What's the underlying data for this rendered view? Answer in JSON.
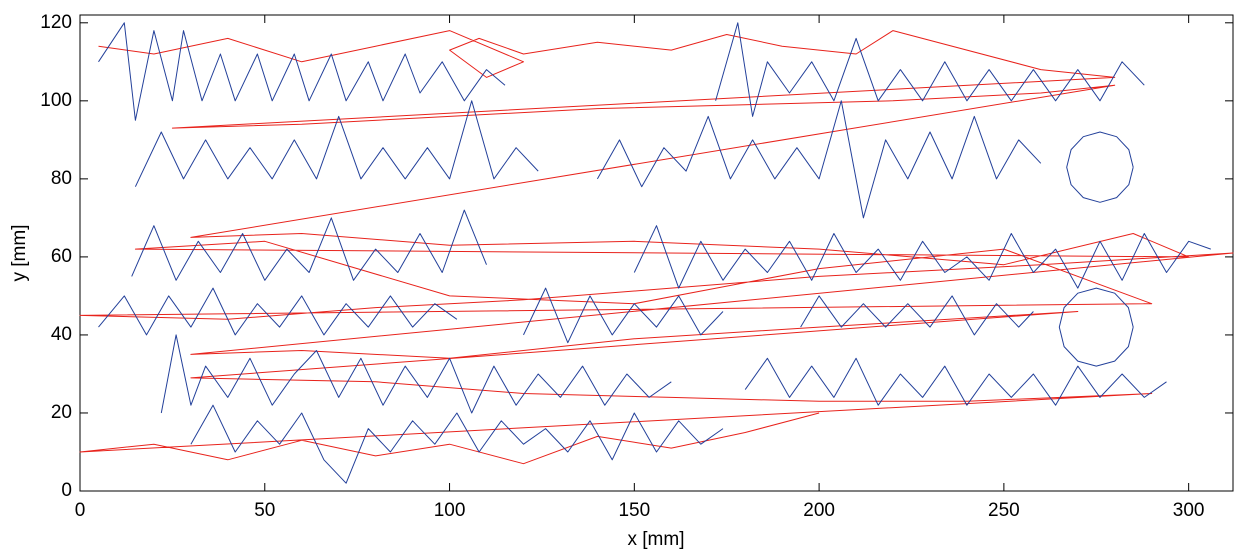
{
  "chart_data": {
    "type": "line",
    "xlabel": "x [mm]",
    "ylabel": "y [mm]",
    "xlim": [
      0,
      312
    ],
    "ylim": [
      0,
      122
    ],
    "xticks": [
      0,
      50,
      100,
      150,
      200,
      250,
      300
    ],
    "yticks": [
      0,
      20,
      40,
      60,
      80,
      100,
      120
    ],
    "series": [
      {
        "color": "#e8231c",
        "x": [
          5,
          20,
          40,
          60,
          80,
          100,
          120,
          110,
          100,
          108,
          120,
          140,
          160,
          175,
          190,
          210,
          220,
          260,
          280,
          25,
          60,
          100,
          140,
          180,
          220,
          260,
          280,
          30,
          60,
          100,
          150,
          200,
          250,
          285,
          300,
          15,
          50,
          100,
          150,
          200,
          250,
          290,
          0,
          40,
          80,
          120,
          160,
          200,
          260,
          312,
          30,
          60,
          100,
          150,
          200,
          270,
          30,
          80,
          120,
          160,
          200,
          240,
          290,
          0,
          20,
          40,
          60,
          80,
          100,
          120,
          140,
          160,
          180,
          200
        ],
        "values": [
          114,
          112,
          116,
          110,
          114,
          118,
          110,
          106,
          113,
          116,
          112,
          115,
          113,
          117,
          114,
          112,
          118,
          108,
          106,
          93,
          94,
          96,
          98,
          99,
          100,
          102,
          104,
          65,
          66,
          63,
          64,
          62,
          58,
          66,
          60,
          62,
          64,
          50,
          48,
          57,
          62,
          48,
          45,
          44,
          47,
          49,
          52,
          55,
          58,
          61,
          35,
          36,
          34,
          39,
          42,
          46,
          29,
          28,
          25,
          24,
          23,
          23,
          25,
          10,
          12,
          8,
          13,
          9,
          12,
          7,
          14,
          11,
          15,
          20
        ]
      },
      {
        "color": "#23409a",
        "x": [
          5,
          12,
          15,
          20,
          25,
          28,
          33,
          38,
          42,
          48,
          52,
          58,
          62,
          68,
          72,
          78,
          82,
          88,
          92,
          98,
          104,
          110,
          115,
          null,
          172,
          178,
          182,
          186,
          192,
          198,
          204,
          210,
          216,
          222,
          228,
          234,
          240,
          246,
          252,
          258,
          264,
          270,
          276,
          282,
          288,
          null,
          15,
          22,
          28,
          34,
          40,
          46,
          52,
          58,
          64,
          70,
          76,
          82,
          88,
          94,
          100,
          106,
          112,
          118,
          124,
          null,
          140,
          146,
          152,
          158,
          164,
          170,
          176,
          182,
          188,
          194,
          200,
          206,
          212,
          218,
          224,
          230,
          236,
          242,
          248,
          254,
          260,
          null,
          285,
          283.8,
          280.5,
          276,
          271.5,
          268.2,
          267,
          268.2,
          271.5,
          276,
          280.5,
          283.8,
          285,
          null,
          14,
          20,
          26,
          32,
          38,
          44,
          50,
          56,
          62,
          68,
          74,
          80,
          86,
          92,
          98,
          104,
          110,
          null,
          150,
          156,
          162,
          168,
          174,
          180,
          186,
          192,
          198,
          204,
          210,
          216,
          222,
          228,
          234,
          240,
          246,
          252,
          258,
          264,
          270,
          276,
          282,
          288,
          294,
          300,
          306,
          null,
          5,
          12,
          18,
          24,
          30,
          36,
          42,
          48,
          54,
          60,
          66,
          72,
          78,
          84,
          90,
          96,
          102,
          null,
          120,
          126,
          132,
          138,
          144,
          150,
          156,
          162,
          168,
          174,
          null,
          195,
          200,
          206,
          212,
          218,
          224,
          230,
          236,
          242,
          248,
          254,
          258,
          null,
          285,
          283.7,
          280,
          275,
          270,
          266.3,
          265,
          266.3,
          270,
          275,
          280,
          283.7,
          285,
          null,
          22,
          26,
          30,
          34,
          40,
          46,
          52,
          58,
          64,
          70,
          76,
          82,
          88,
          94,
          100,
          106,
          112,
          118,
          124,
          130,
          136,
          142,
          148,
          154,
          160,
          null,
          180,
          186,
          192,
          198,
          204,
          210,
          216,
          222,
          228,
          234,
          240,
          246,
          252,
          258,
          264,
          270,
          276,
          282,
          288,
          294,
          null,
          30,
          36,
          42,
          48,
          54,
          60,
          66,
          72,
          78,
          84,
          90,
          96,
          102,
          108,
          114,
          120,
          126,
          132,
          138,
          144,
          150,
          156,
          162,
          168,
          174
        ],
        "values": [
          110,
          120,
          95,
          118,
          100,
          118,
          100,
          112,
          100,
          112,
          100,
          112,
          100,
          112,
          100,
          110,
          100,
          112,
          102,
          110,
          100,
          108,
          104,
          null,
          100,
          120,
          96,
          110,
          102,
          110,
          100,
          116,
          100,
          108,
          100,
          110,
          100,
          108,
          100,
          108,
          100,
          108,
          100,
          110,
          104,
          null,
          78,
          92,
          80,
          90,
          80,
          88,
          80,
          90,
          80,
          96,
          80,
          88,
          80,
          88,
          80,
          100,
          80,
          88,
          82,
          null,
          80,
          90,
          78,
          88,
          82,
          96,
          80,
          90,
          80,
          88,
          80,
          100,
          70,
          90,
          80,
          92,
          80,
          96,
          80,
          90,
          84,
          null,
          83,
          87.5,
          90.8,
          92,
          90.8,
          87.5,
          83,
          78.5,
          75.2,
          74,
          75.2,
          78.5,
          83,
          null,
          55,
          68,
          54,
          64,
          56,
          66,
          54,
          62,
          56,
          70,
          54,
          62,
          56,
          66,
          56,
          72,
          58,
          null,
          56,
          68,
          52,
          64,
          54,
          62,
          56,
          64,
          54,
          66,
          56,
          62,
          54,
          64,
          56,
          60,
          54,
          66,
          56,
          62,
          52,
          64,
          54,
          66,
          56,
          64,
          62,
          null,
          42,
          50,
          40,
          50,
          42,
          52,
          40,
          48,
          42,
          50,
          40,
          48,
          42,
          50,
          42,
          48,
          44,
          null,
          40,
          52,
          38,
          50,
          40,
          48,
          42,
          50,
          40,
          46,
          null,
          42,
          50,
          42,
          48,
          42,
          48,
          42,
          50,
          40,
          48,
          42,
          46,
          null,
          42,
          47,
          50.7,
          52,
          50.7,
          47,
          42,
          37,
          33.3,
          32,
          33.3,
          37,
          42,
          null,
          20,
          40,
          22,
          32,
          24,
          34,
          22,
          30,
          36,
          24,
          34,
          22,
          32,
          24,
          34,
          20,
          32,
          22,
          30,
          24,
          32,
          22,
          30,
          24,
          28,
          null,
          26,
          34,
          24,
          32,
          24,
          34,
          22,
          30,
          24,
          32,
          22,
          30,
          24,
          30,
          22,
          32,
          24,
          30,
          24,
          28,
          null,
          12,
          22,
          10,
          18,
          12,
          20,
          8,
          2,
          16,
          10,
          18,
          12,
          20,
          10,
          18,
          12,
          16,
          10,
          18,
          8,
          20,
          10,
          18,
          12,
          16
        ]
      }
    ]
  }
}
